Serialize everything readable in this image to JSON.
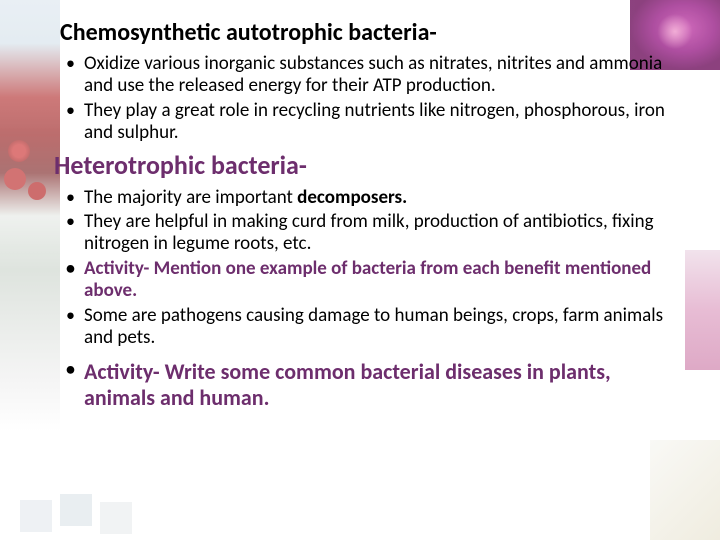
{
  "heading1": "Chemosynthetic autotrophic bacteria-",
  "section1": {
    "item1": "Oxidize various inorganic substances such as nitrates, nitrites and ammonia and use the released energy for their ATP production.",
    "item2": "They play a great role in recycling nutrients like nitrogen, phosphorous, iron and sulphur."
  },
  "heading2": "Heterotrophic bacteria-",
  "section2": {
    "item1_prefix": "The majority are important ",
    "item1_bold": "decomposers.",
    "item2": "They are helpful in making curd from milk, production of antibiotics, fixing nitrogen in legume roots, etc.",
    "item3": "Activity- Mention one example of bacteria from each benefit mentioned above.",
    "item4": "Some are pathogens causing damage to human beings, crops, farm animals and pets.",
    "item5": "Activity- Write some common bacterial diseases in plants, animals and human."
  },
  "colors": {
    "heading_purple": "#6d2e6d",
    "text_black": "#000000",
    "bg_white": "#ffffff"
  }
}
